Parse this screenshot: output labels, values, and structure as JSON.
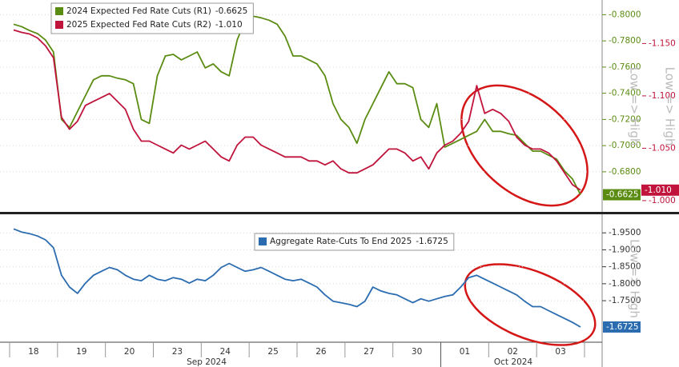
{
  "chart_data": [
    {
      "type": "line",
      "legend": "upper left",
      "grid": true,
      "y_label": "Low => High",
      "y2_label": "Low => High",
      "ylim": [
        -0.65,
        -0.81
      ],
      "yticks": [
        {
          "value": -0.8,
          "label": "-0.8000"
        },
        {
          "value": -0.78,
          "label": "-0.7800"
        },
        {
          "value": -0.76,
          "label": "-0.7600"
        },
        {
          "value": -0.74,
          "label": "-0.7400"
        },
        {
          "value": -0.72,
          "label": "-0.7200"
        },
        {
          "value": -0.7,
          "label": "-0.7000"
        },
        {
          "value": -0.68,
          "label": "-0.6800"
        }
      ],
      "y2lim": [
        -0.99,
        -1.19
      ],
      "y2ticks": [
        {
          "value": -1.15,
          "label": "-1.150"
        },
        {
          "value": -1.1,
          "label": "-1.100"
        },
        {
          "value": -1.05,
          "label": "-1.050"
        },
        {
          "value": -1.0,
          "label": "-1.000"
        }
      ],
      "series": [
        {
          "name": "2024 Expected Fed Rate Cuts (R1)",
          "color": "#5b8c12",
          "axis": "y",
          "last_label": "-0.6625",
          "values": [
            -0.7927,
            -0.7909,
            -0.7879,
            -0.7855,
            -0.7806,
            -0.7715,
            -0.72,
            -0.7139,
            -0.7261,
            -0.7382,
            -0.7503,
            -0.7533,
            -0.7533,
            -0.7515,
            -0.7503,
            -0.7473,
            -0.72,
            -0.717,
            -0.7533,
            -0.7685,
            -0.7697,
            -0.7655,
            -0.7685,
            -0.7715,
            -0.7594,
            -0.7624,
            -0.7564,
            -0.7533,
            -0.7806,
            -0.7958,
            -0.7988,
            -0.7976,
            -0.7958,
            -0.7927,
            -0.7836,
            -0.7685,
            -0.7685,
            -0.7655,
            -0.7624,
            -0.7533,
            -0.7321,
            -0.72,
            -0.7139,
            -0.7018,
            -0.72,
            -0.7321,
            -0.7442,
            -0.7564,
            -0.7473,
            -0.7473,
            -0.7442,
            -0.72,
            -0.7139,
            -0.7321,
            -0.6988,
            -0.7018,
            -0.7048,
            -0.7079,
            -0.7109,
            -0.72,
            -0.7109,
            -0.7109,
            -0.7091,
            -0.7079,
            -0.7018,
            -0.6958,
            -0.6958,
            -0.6927,
            -0.6897,
            -0.6806,
            -0.6745,
            -0.6625
          ]
        },
        {
          "name": "2025 Expected Fed Rate Cuts (R2)",
          "color": "#c0143c",
          "axis": "y2",
          "last_label": "-1.010",
          "values": [
            -1.1629,
            -1.1606,
            -1.1591,
            -1.1553,
            -1.1477,
            -1.1364,
            -1.0795,
            -1.0682,
            -1.0758,
            -1.0909,
            -1.0947,
            -1.0985,
            -1.1023,
            -1.0947,
            -1.0871,
            -1.0682,
            -1.0568,
            -1.0568,
            -1.053,
            -1.0492,
            -1.0455,
            -1.053,
            -1.0492,
            -1.053,
            -1.0568,
            -1.0492,
            -1.0417,
            -1.0379,
            -1.053,
            -1.0606,
            -1.0606,
            -1.053,
            -1.0492,
            -1.0455,
            -1.0417,
            -1.0417,
            -1.0417,
            -1.0379,
            -1.0379,
            -1.0341,
            -1.0379,
            -1.0303,
            -1.0265,
            -1.0265,
            -1.0303,
            -1.0341,
            -1.0417,
            -1.0492,
            -1.0492,
            -1.0455,
            -1.0379,
            -1.0417,
            -1.0303,
            -1.0455,
            -1.053,
            -1.0568,
            -1.0644,
            -1.0758,
            -1.1098,
            -1.0833,
            -1.0871,
            -1.0833,
            -1.0758,
            -1.0606,
            -1.053,
            -1.0492,
            -1.0492,
            -1.0455,
            -1.0379,
            -1.0265,
            -1.0152,
            -1.01
          ]
        }
      ]
    },
    {
      "type": "line",
      "legend": "upper center",
      "grid": true,
      "y_label": "Low => High",
      "ylim": [
        -1.63,
        -2.0
      ],
      "yticks": [
        {
          "value": -1.95,
          "label": "-1.9500"
        },
        {
          "value": -1.9,
          "label": "-1.9000"
        },
        {
          "value": -1.85,
          "label": "-1.8500"
        },
        {
          "value": -1.8,
          "label": "-1.8000"
        },
        {
          "value": -1.75,
          "label": "-1.7500"
        }
      ],
      "categories": [
        null,
        null,
        null,
        "18",
        null,
        null,
        null,
        null,
        null,
        "19",
        null,
        null,
        null,
        null,
        null,
        "20",
        null,
        null,
        null,
        null,
        null,
        "23",
        null,
        null,
        null,
        null,
        null,
        "24",
        null,
        null,
        null,
        null,
        null,
        "25",
        null,
        null,
        null,
        null,
        null,
        "26",
        null,
        null,
        null,
        null,
        null,
        "27",
        null,
        null,
        null,
        null,
        null,
        "30",
        null,
        null,
        null,
        null,
        null,
        "01",
        null,
        null,
        null,
        null,
        null,
        "02",
        null,
        null,
        null,
        null,
        null,
        "03",
        null,
        null
      ],
      "x_group_labels": [
        "Sep 2024",
        "Oct 2024"
      ],
      "series": [
        {
          "name": "Aggregate Rate-Cuts To End 2025",
          "color": "#2b6cb0",
          "axis": "y",
          "last_label": "-1.6725",
          "values": [
            -1.9616,
            -1.9523,
            -1.9477,
            -1.9407,
            -1.9292,
            -1.906,
            -1.825,
            -1.7903,
            -1.7717,
            -1.8018,
            -1.825,
            -1.8366,
            -1.8481,
            -1.8412,
            -1.825,
            -1.8134,
            -1.8088,
            -1.825,
            -1.8134,
            -1.8088,
            -1.818,
            -1.8134,
            -1.8018,
            -1.8134,
            -1.8088,
            -1.825,
            -1.8481,
            -1.8597,
            -1.8481,
            -1.8366,
            -1.8412,
            -1.8481,
            -1.8366,
            -1.825,
            -1.8134,
            -1.8088,
            -1.8134,
            -1.8018,
            -1.7903,
            -1.7671,
            -1.7486,
            -1.744,
            -1.7393,
            -1.7324,
            -1.7486,
            -1.7903,
            -1.7787,
            -1.7717,
            -1.7671,
            -1.7555,
            -1.744,
            -1.7555,
            -1.7486,
            -1.7555,
            -1.7625,
            -1.7671,
            -1.7903,
            -1.818,
            -1.825,
            -1.8134,
            -1.8018,
            -1.7903,
            -1.7787,
            -1.7671,
            -1.7486,
            -1.7324,
            -1.7324,
            -1.7208,
            -1.7092,
            -1.6977,
            -1.6861,
            -1.6725
          ]
        }
      ]
    }
  ]
}
